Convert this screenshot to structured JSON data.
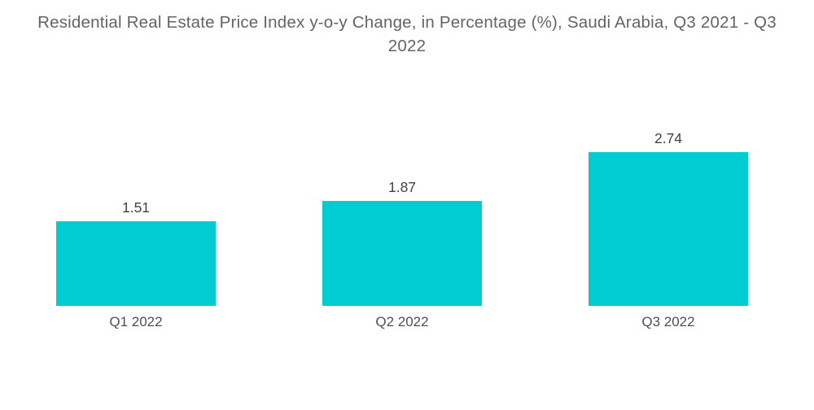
{
  "title": "Residential Real Estate Price Index y-o-y Change, in Percentage (%), Saudi Arabia, Q3 2021 - Q3 2022",
  "colors": {
    "background": "#FFFFFF",
    "bar": "#00CCD2",
    "title_text": "#646464",
    "value_text": "#424242",
    "category_text": "#4F4F4F"
  },
  "chart_data": {
    "type": "bar",
    "title": "Residential Real Estate Price Index y-o-y Change, in Percentage (%), Saudi Arabia, Q3 2021 - Q3 2022",
    "categories": [
      "Q1 2022",
      "Q2 2022",
      "Q3 2022"
    ],
    "values": [
      1.51,
      1.87,
      2.74
    ],
    "value_labels": [
      "1.51",
      "1.87",
      "2.74"
    ],
    "xlabel": "",
    "ylabel": "",
    "ylim": [
      0,
      2.74
    ],
    "grid": false,
    "legend": "none",
    "axes_visible": false,
    "bar_color": "#00CCD2"
  }
}
